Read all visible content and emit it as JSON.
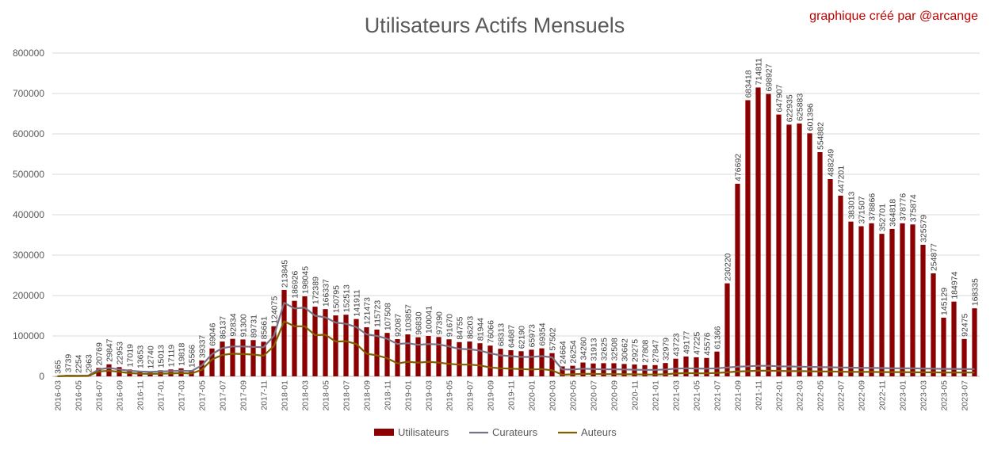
{
  "chart_data": {
    "type": "bar",
    "title": "Utilisateurs Actifs Mensuels",
    "credit": "graphique créé par  @arcange",
    "ylim": [
      0,
      800000
    ],
    "yticks": [
      "0",
      "100000",
      "200000",
      "300000",
      "400000",
      "500000",
      "600000",
      "700000",
      "800000"
    ],
    "grid": true,
    "legend_position": "bottom",
    "colors": {
      "bar": "#8b0000",
      "curateurs": "#7a7383",
      "auteurs": "#7f6000",
      "grid": "#d9d9d9",
      "axis": "#bfbfbf",
      "credit": "#c00000",
      "title": "#595959"
    },
    "categories": [
      "2016-03",
      "2016-04",
      "2016-05",
      "2016-06",
      "2016-07",
      "2016-08",
      "2016-09",
      "2016-10",
      "2016-11",
      "2016-12",
      "2017-01",
      "2017-02",
      "2017-03",
      "2017-04",
      "2017-05",
      "2017-06",
      "2017-07",
      "2017-08",
      "2017-09",
      "2017-10",
      "2017-11",
      "2017-12",
      "2018-01",
      "2018-02",
      "2018-03",
      "2018-04",
      "2018-05",
      "2018-06",
      "2018-07",
      "2018-08",
      "2018-09",
      "2018-10",
      "2018-11",
      "2018-12",
      "2019-01",
      "2019-02",
      "2019-03",
      "2019-04",
      "2019-05",
      "2019-06",
      "2019-07",
      "2019-08",
      "2019-09",
      "2019-10",
      "2019-11",
      "2019-12",
      "2020-01",
      "2020-02",
      "2020-03",
      "2020-04",
      "2020-05",
      "2020-06",
      "2020-07",
      "2020-08",
      "2020-09",
      "2020-10",
      "2020-11",
      "2020-12",
      "2021-01",
      "2021-02",
      "2021-03",
      "2021-04",
      "2021-05",
      "2021-06",
      "2021-07",
      "2021-08",
      "2021-09",
      "2021-10",
      "2021-11",
      "2021-12",
      "2022-01",
      "2022-02",
      "2022-03",
      "2022-04",
      "2022-05",
      "2022-06",
      "2022-07",
      "2022-08",
      "2022-09",
      "2022-10",
      "2022-11",
      "2022-12",
      "2023-01",
      "2023-02",
      "2023-03",
      "2023-04",
      "2023-05",
      "2023-06",
      "2023-07",
      "2023-08"
    ],
    "series": [
      {
        "name": "Utilisateurs",
        "values": [
          365,
          3739,
          2254,
          2963,
          20769,
          29847,
          22953,
          17019,
          13653,
          12740,
          15013,
          17119,
          19818,
          15566,
          39337,
          69046,
          86137,
          92834,
          91300,
          89731,
          85661,
          124075,
          213845,
          186926,
          198045,
          172389,
          166337,
          150795,
          152513,
          141911,
          121473,
          115723,
          107508,
          92087,
          103857,
          96830,
          100041,
          97390,
          91670,
          84755,
          86203,
          81944,
          76066,
          68313,
          64687,
          62190,
          65973,
          69354,
          57502,
          24664,
          26254,
          34260,
          31913,
          32625,
          32508,
          30662,
          29275,
          27808,
          27847,
          32979,
          43723,
          49177,
          47225,
          45576,
          61366,
          230220,
          476692,
          683418,
          714811,
          698927,
          647907,
          622935,
          625883,
          601396,
          554882,
          488249,
          447201,
          383013,
          371507,
          378866,
          352701,
          364818,
          378776,
          375874,
          325579,
          254877,
          145129,
          184974,
          92475,
          168335
        ]
      },
      {
        "name": "Curateurs",
        "values": [
          300,
          1800,
          1500,
          2000,
          17000,
          21000,
          17000,
          14000,
          12000,
          11000,
          12000,
          13000,
          14000,
          13000,
          27000,
          55000,
          70000,
          74000,
          74000,
          73000,
          72000,
          100000,
          182000,
          168000,
          170000,
          150000,
          146000,
          133000,
          130000,
          122000,
          104000,
          100000,
          93000,
          80000,
          82000,
          78000,
          80000,
          79000,
          74000,
          68000,
          67000,
          64000,
          57000,
          52000,
          50000,
          48000,
          48000,
          50000,
          47000,
          17000,
          17000,
          19000,
          18000,
          17500,
          17500,
          17000,
          16500,
          16000,
          16000,
          17000,
          19000,
          20000,
          19500,
          19000,
          20000,
          22000,
          24000,
          25000,
          26000,
          26000,
          25000,
          24500,
          24000,
          23500,
          23000,
          22500,
          22000,
          21500,
          21000,
          21000,
          20500,
          20000,
          20000,
          20000,
          19500,
          19000,
          18500,
          18500,
          18000,
          18000
        ]
      },
      {
        "name": "Auteurs",
        "values": [
          200,
          1000,
          800,
          1000,
          12000,
          14000,
          11000,
          8000,
          6500,
          6000,
          6500,
          7000,
          8000,
          7000,
          16000,
          42000,
          53000,
          56000,
          55000,
          54000,
          51000,
          75000,
          136000,
          124000,
          124000,
          102000,
          103000,
          86000,
          87000,
          80000,
          56000,
          52000,
          45000,
          32000,
          36000,
          34000,
          36000,
          34000,
          31000,
          29000,
          29000,
          27000,
          22000,
          20000,
          19000,
          18000,
          17000,
          18000,
          15000,
          4000,
          5000,
          6000,
          6000,
          5500,
          5500,
          5000,
          5000,
          4500,
          4500,
          5000,
          7000,
          8000,
          7500,
          7500,
          8500,
          10000,
          12000,
          13000,
          14000,
          14000,
          13500,
          13000,
          13000,
          12500,
          12000,
          12000,
          11500,
          11000,
          11000,
          11000,
          10500,
          10500,
          10500,
          10000,
          10000,
          10000,
          9500,
          9500,
          9500,
          9500
        ]
      }
    ]
  }
}
